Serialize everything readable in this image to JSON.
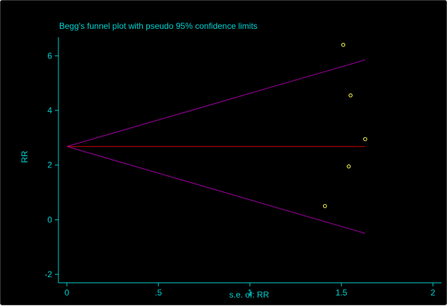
{
  "chart_data": {
    "type": "scatter",
    "title": "Begg's funnel plot with pseudo 95% confidence limits",
    "xlabel": "s.e. of: RR",
    "ylabel": "RR",
    "xlim": [
      0,
      2
    ],
    "ylim": [
      -2,
      6.6
    ],
    "x_ticks": [
      0,
      0.5,
      1,
      1.5,
      2
    ],
    "x_tick_labels": [
      "0",
      ".5",
      "1",
      "1.5",
      "2"
    ],
    "y_ticks": [
      -2,
      0,
      2,
      4,
      6
    ],
    "y_tick_labels": [
      "-2",
      "0",
      "2",
      "4",
      "6"
    ],
    "points": [
      {
        "x": 1.51,
        "y": 6.4
      },
      {
        "x": 1.55,
        "y": 4.55
      },
      {
        "x": 1.63,
        "y": 2.95
      },
      {
        "x": 1.54,
        "y": 1.95
      },
      {
        "x": 1.41,
        "y": 0.5
      }
    ],
    "pooled_estimate": 2.68,
    "funnel_max_se": 1.63,
    "funnel_upper_end": 5.85,
    "funnel_lower_end": -0.5,
    "grid": false,
    "legend": "none"
  },
  "colors": {
    "background": "#000000",
    "text": "#00d2d2",
    "axis": "#00d2d2",
    "points": "#ffff55",
    "pooled_line": "#d10000",
    "funnel_lines": "#a300a3"
  }
}
